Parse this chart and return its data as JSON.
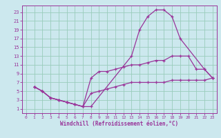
{
  "xlabel": "Windchill (Refroidissement éolien,°C)",
  "bg_color": "#cce8ee",
  "grid_color": "#99ccbb",
  "line_color": "#993399",
  "xlim": [
    -0.5,
    23.5
  ],
  "ylim": [
    0,
    24.5
  ],
  "xticks": [
    0,
    1,
    2,
    3,
    4,
    5,
    6,
    7,
    8,
    9,
    10,
    11,
    12,
    13,
    14,
    15,
    16,
    17,
    18,
    19,
    20,
    21,
    22,
    23
  ],
  "yticks": [
    1,
    3,
    5,
    7,
    9,
    11,
    13,
    15,
    17,
    19,
    21,
    23
  ],
  "series1_x": [
    1,
    2,
    3,
    4,
    5,
    6,
    7,
    8,
    13,
    14,
    15,
    16,
    17,
    18,
    19,
    22,
    23
  ],
  "series1_y": [
    6,
    5,
    3.5,
    3,
    2.5,
    2,
    1.5,
    1.5,
    13,
    19,
    22,
    23.5,
    23.5,
    22,
    17,
    10,
    8
  ],
  "series2_x": [
    1,
    2,
    3,
    4,
    5,
    6,
    7,
    8,
    9,
    10,
    11,
    12,
    13,
    14,
    15,
    16,
    17,
    18,
    19,
    20,
    21,
    22,
    23
  ],
  "series2_y": [
    6,
    5,
    3.5,
    3,
    2.5,
    2,
    1.5,
    8,
    9.5,
    9.5,
    10,
    10.5,
    11,
    11,
    11.5,
    12,
    12,
    13,
    13,
    13,
    10,
    10,
    8
  ],
  "series3_x": [
    1,
    2,
    3,
    4,
    5,
    6,
    7,
    8,
    9,
    10,
    11,
    12,
    13,
    14,
    15,
    16,
    17,
    18,
    19,
    20,
    21,
    22,
    23
  ],
  "series3_y": [
    6,
    5,
    3.5,
    3,
    2.5,
    2,
    1.5,
    4.5,
    5,
    5.5,
    6,
    6.5,
    7,
    7,
    7,
    7,
    7,
    7.5,
    7.5,
    7.5,
    7.5,
    7.5,
    8
  ]
}
